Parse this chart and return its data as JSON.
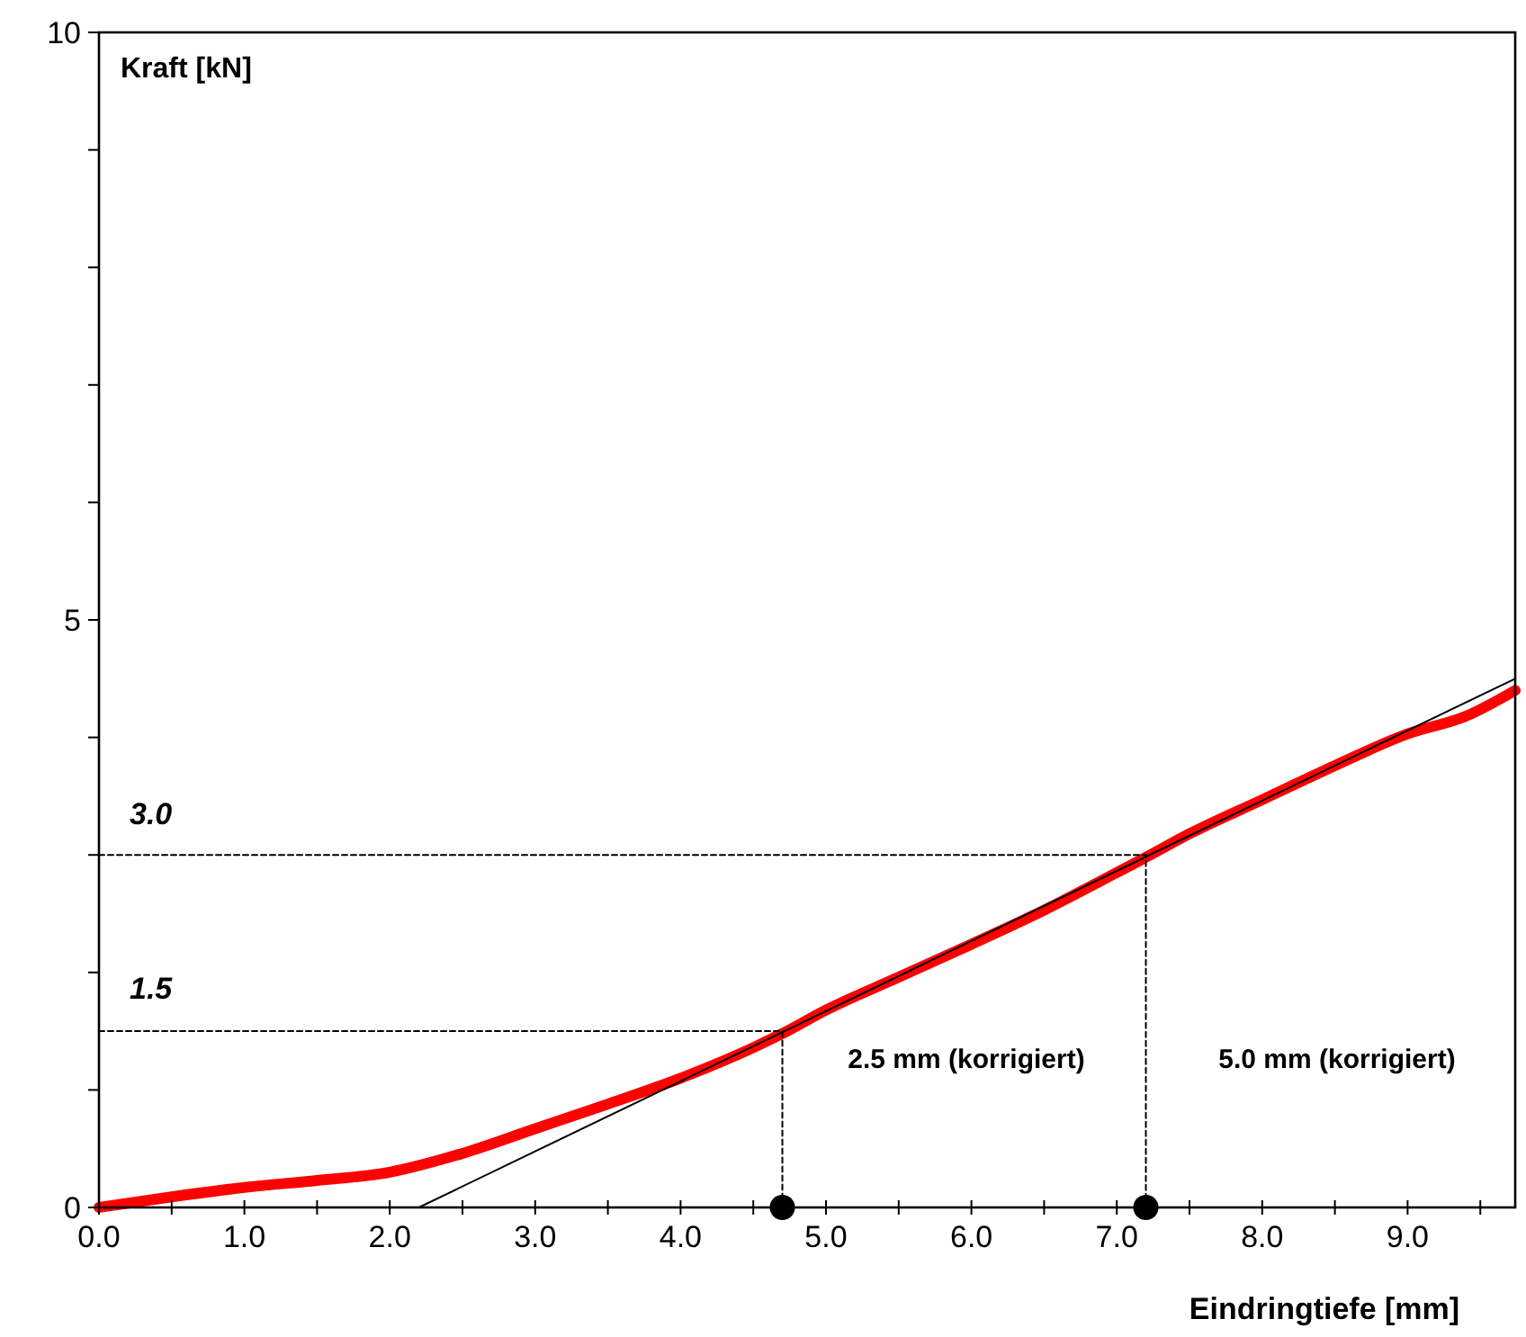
{
  "chart_data": {
    "type": "line",
    "xlabel": "Eindringtiefe [mm]",
    "ylabel": "Kraft [kN]",
    "xlim": [
      0,
      9.74
    ],
    "ylim": [
      0,
      10
    ],
    "xticks": [
      {
        "value": 0,
        "label": "0.0"
      },
      {
        "value": 0.5,
        "label": null
      },
      {
        "value": 1,
        "label": "1.0"
      },
      {
        "value": 1.5,
        "label": null
      },
      {
        "value": 2,
        "label": "2.0"
      },
      {
        "value": 2.5,
        "label": null
      },
      {
        "value": 3,
        "label": "3.0"
      },
      {
        "value": 3.5,
        "label": null
      },
      {
        "value": 4,
        "label": "4.0"
      },
      {
        "value": 4.5,
        "label": null
      },
      {
        "value": 5,
        "label": "5.0"
      },
      {
        "value": 5.5,
        "label": null
      },
      {
        "value": 6,
        "label": "6.0"
      },
      {
        "value": 6.5,
        "label": null
      },
      {
        "value": 7,
        "label": "7.0"
      },
      {
        "value": 7.5,
        "label": null
      },
      {
        "value": 8,
        "label": "8.0"
      },
      {
        "value": 8.5,
        "label": null
      },
      {
        "value": 9,
        "label": "9.0"
      },
      {
        "value": 9.5,
        "label": null
      }
    ],
    "yticks": [
      0,
      {
        "value": 1,
        "label": null
      },
      {
        "value": 2,
        "label": null
      },
      {
        "value": 3,
        "label": null
      },
      {
        "value": 4,
        "label": null
      },
      5,
      {
        "value": 6,
        "label": null
      },
      {
        "value": 7,
        "label": null
      },
      {
        "value": 8,
        "label": null
      },
      {
        "value": 9,
        "label": null
      },
      10
    ],
    "grid": false,
    "series": [
      {
        "color": "#ff0000",
        "x": [
          0,
          0.5,
          1,
          1.5,
          2,
          2.5,
          3,
          3.5,
          4,
          4.5,
          4.7,
          5,
          5.5,
          6,
          6.5,
          7,
          7.2,
          7.5,
          8,
          8.5,
          9,
          9.4,
          9.74
        ],
        "values": [
          0,
          0.09,
          0.17,
          0.23,
          0.3,
          0.46,
          0.67,
          0.88,
          1.1,
          1.36,
          1.48,
          1.68,
          1.96,
          2.24,
          2.53,
          2.85,
          2.98,
          3.18,
          3.47,
          3.76,
          4.03,
          4.18,
          4.4
        ]
      },
      {
        "color": "#000000",
        "x": [
          2.2,
          9.74
        ],
        "values": [
          0,
          4.5
        ],
        "line_style": "solid"
      },
      {
        "color": "#000000",
        "x": [
          0,
          4.7,
          4.7
        ],
        "values": [
          1.5,
          1.5,
          0
        ],
        "line_style": "dashed"
      },
      {
        "color": "#000000",
        "x": [
          0,
          7.2,
          7.2
        ],
        "values": [
          3.0,
          3.0,
          0
        ],
        "line_style": "dashed"
      },
      {
        "type": "scatter",
        "color": "#000000",
        "marker": "circle",
        "x": [
          4.7,
          7.2
        ],
        "values": [
          0,
          0
        ]
      }
    ],
    "annotations": [
      "1.5",
      "3.0",
      "2.5 mm (korrigiert)",
      "5.0 mm (korrigiert)"
    ]
  }
}
